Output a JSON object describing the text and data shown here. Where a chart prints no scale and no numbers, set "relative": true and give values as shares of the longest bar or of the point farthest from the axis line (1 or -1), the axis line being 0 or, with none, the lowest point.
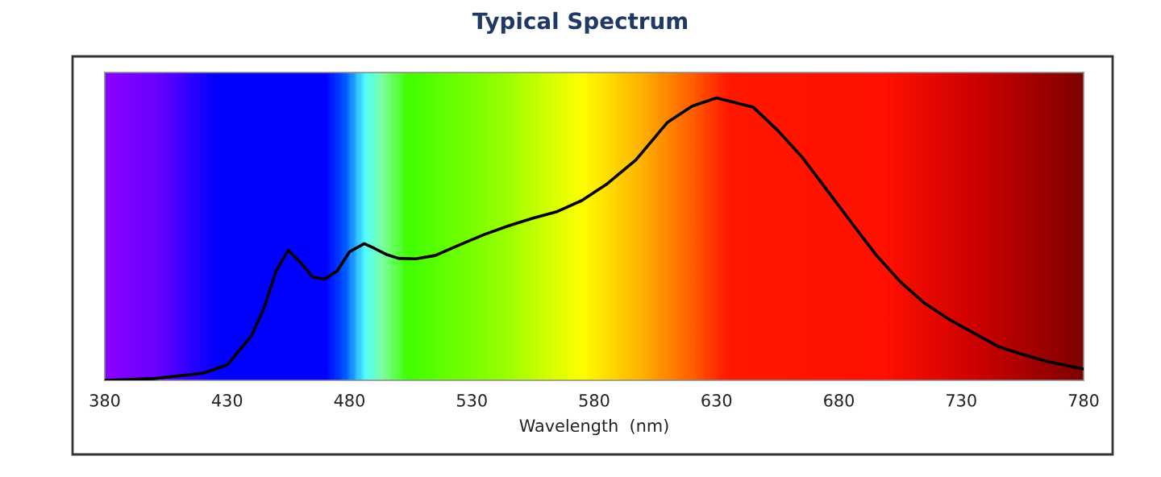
{
  "chart_data": {
    "type": "line",
    "title": "Typical Spectrum",
    "xlabel": "Wavelength  (nm)",
    "relative": true,
    "xlim": [
      380,
      780
    ],
    "xticks": [
      380,
      430,
      480,
      530,
      580,
      630,
      680,
      730,
      780
    ],
    "grid": false,
    "legend": false,
    "series": [
      {
        "color": "#000000",
        "x": [
          380,
          400,
          420,
          430,
          440,
          445,
          450,
          455,
          460,
          465,
          470,
          475,
          480,
          486,
          490,
          495,
          500,
          507,
          515,
          525,
          535,
          545,
          555,
          565,
          575,
          585,
          597,
          610,
          620,
          630,
          645,
          655,
          665,
          675,
          685,
          695,
          705,
          715,
          725,
          735,
          745,
          755,
          765,
          780
        ],
        "values": [
          0,
          0.006,
          0.025,
          0.054,
          0.159,
          0.254,
          0.388,
          0.461,
          0.417,
          0.365,
          0.359,
          0.388,
          0.455,
          0.484,
          0.468,
          0.446,
          0.432,
          0.43,
          0.442,
          0.48,
          0.516,
          0.547,
          0.574,
          0.598,
          0.637,
          0.694,
          0.78,
          0.914,
          0.971,
          1.0,
          0.967,
          0.885,
          0.79,
          0.675,
          0.56,
          0.446,
          0.35,
          0.273,
          0.216,
          0.168,
          0.12,
          0.092,
          0.067,
          0.04
        ]
      }
    ]
  }
}
